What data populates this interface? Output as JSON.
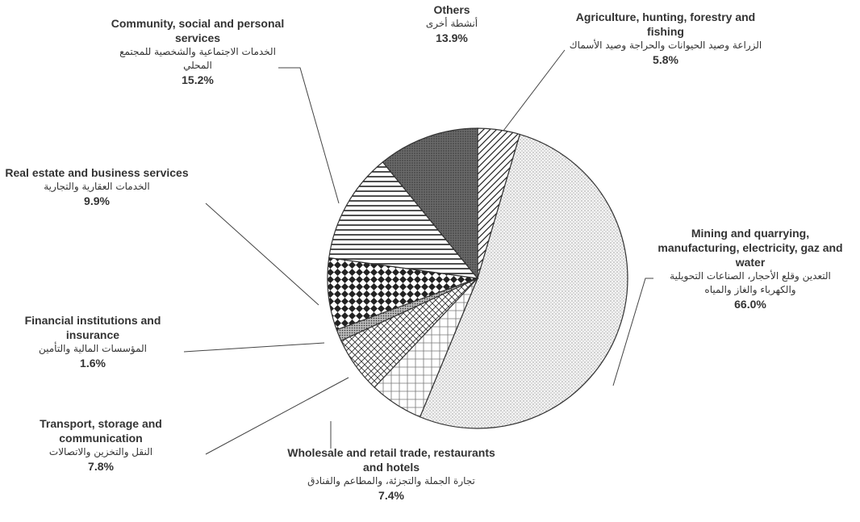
{
  "chart_data": {
    "type": "pie",
    "categories": [
      "Agriculture, hunting, forestry and fishing",
      "Mining and quarrying, manufacturing, electricity, gaz and water",
      "Wholesale and retail trade, restaurants and hotels",
      "Transport, storage and communication",
      "Financial institutions and insurance",
      "Real estate and business services",
      "Community, social and personal services",
      "Others"
    ],
    "arabic_labels": [
      "الزراعة وصيد الحيوانات والحراجة وصيد الأسماك",
      "التعدين وقلع الأحجار، الصناعات التحويلية والكهرباء والغاز والمياه",
      "تجارة الجملة والتجزئة، والمطاعم والفنادق",
      "النقل والتخزين والاتصالات",
      "المؤسسات المالية والتأمين",
      "الخدمات العقارية والتجارية",
      "الخدمات الاجتماعية والشخصية للمجتمع المحلي",
      "أنشطة أخرى"
    ],
    "values": [
      5.8,
      66.0,
      7.4,
      7.8,
      1.6,
      9.9,
      15.2,
      13.9
    ],
    "value_labels": [
      "5.8%",
      "66.0%",
      "7.4%",
      "7.8%",
      "1.6%",
      "9.9%",
      "15.2%",
      "13.9%"
    ]
  }
}
